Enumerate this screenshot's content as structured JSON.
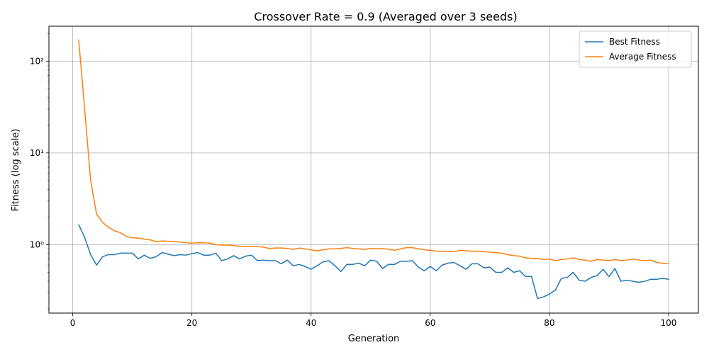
{
  "chart_data": {
    "type": "line",
    "title": "Crossover Rate = 0.9 (Averaged over 3 seeds)",
    "xlabel": "Generation",
    "ylabel": "Fitness (log scale)",
    "yscale": "log",
    "xlim": [
      -4,
      105
    ],
    "ylim": [
      0.18,
      240
    ],
    "xticks": [
      0,
      20,
      40,
      60,
      80,
      100
    ],
    "yticks": [
      1,
      10,
      100
    ],
    "ytick_labels": [
      "10⁰",
      "10¹",
      "10²"
    ],
    "grid": true,
    "legend": "top-right",
    "series": [
      {
        "name": "Best Fitness",
        "color": "#1f77b4",
        "values": [
          1.65,
          1.2,
          0.78,
          0.6,
          0.74,
          0.78,
          0.78,
          0.81,
          0.81,
          0.81,
          0.7,
          0.77,
          0.71,
          0.74,
          0.82,
          0.79,
          0.76,
          0.78,
          0.77,
          0.8,
          0.82,
          0.77,
          0.77,
          0.81,
          0.67,
          0.7,
          0.76,
          0.7,
          0.75,
          0.77,
          0.67,
          0.68,
          0.67,
          0.67,
          0.62,
          0.68,
          0.59,
          0.61,
          0.58,
          0.54,
          0.59,
          0.65,
          0.67,
          0.59,
          0.51,
          0.61,
          0.61,
          0.63,
          0.59,
          0.68,
          0.66,
          0.55,
          0.61,
          0.61,
          0.66,
          0.66,
          0.67,
          0.57,
          0.52,
          0.58,
          0.52,
          0.6,
          0.63,
          0.64,
          0.59,
          0.54,
          0.62,
          0.62,
          0.56,
          0.57,
          0.5,
          0.5,
          0.56,
          0.5,
          0.52,
          0.45,
          0.45,
          0.26,
          0.27,
          0.29,
          0.32,
          0.43,
          0.44,
          0.5,
          0.41,
          0.4,
          0.44,
          0.46,
          0.54,
          0.45,
          0.55,
          0.4,
          0.41,
          0.4,
          0.39,
          0.4,
          0.42,
          0.42,
          0.43,
          0.42
        ]
      },
      {
        "name": "Average Fitness",
        "color": "#ff7f0e",
        "values": [
          170,
          30,
          5.0,
          2.15,
          1.75,
          1.55,
          1.42,
          1.35,
          1.23,
          1.19,
          1.18,
          1.15,
          1.13,
          1.08,
          1.1,
          1.09,
          1.08,
          1.07,
          1.05,
          1.04,
          1.05,
          1.05,
          1.04,
          1.0,
          0.99,
          0.99,
          0.98,
          0.96,
          0.96,
          0.96,
          0.96,
          0.94,
          0.91,
          0.92,
          0.92,
          0.91,
          0.89,
          0.92,
          0.9,
          0.88,
          0.86,
          0.88,
          0.9,
          0.9,
          0.91,
          0.93,
          0.91,
          0.9,
          0.89,
          0.91,
          0.9,
          0.91,
          0.89,
          0.87,
          0.9,
          0.93,
          0.93,
          0.9,
          0.88,
          0.87,
          0.85,
          0.84,
          0.85,
          0.84,
          0.87,
          0.86,
          0.85,
          0.85,
          0.84,
          0.83,
          0.82,
          0.81,
          0.78,
          0.76,
          0.75,
          0.72,
          0.71,
          0.71,
          0.69,
          0.7,
          0.67,
          0.69,
          0.7,
          0.72,
          0.69,
          0.68,
          0.66,
          0.69,
          0.68,
          0.67,
          0.69,
          0.67,
          0.68,
          0.7,
          0.68,
          0.67,
          0.68,
          0.64,
          0.63,
          0.62
        ]
      }
    ]
  }
}
